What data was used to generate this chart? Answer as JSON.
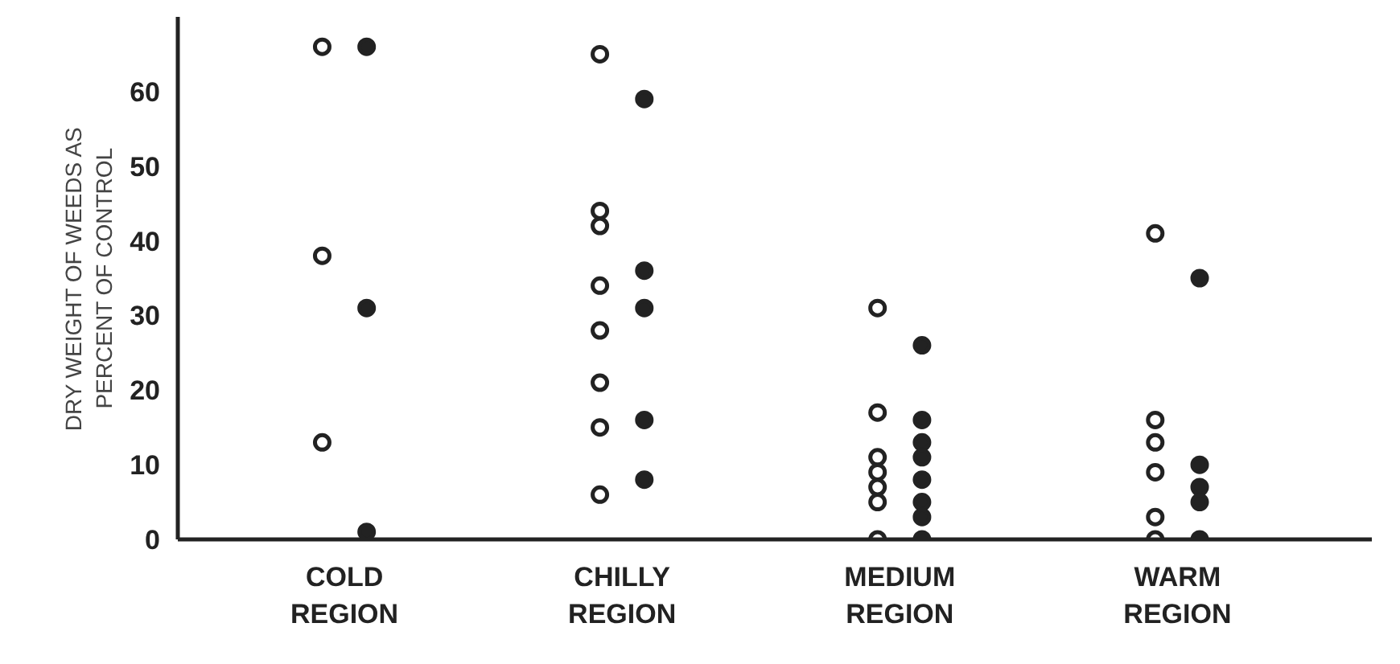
{
  "chart_data": {
    "type": "scatter",
    "ylabel": "DRY WEIGHT OF WEEDS AS\nPERCENT OF CONTROL",
    "categories": [
      "COLD\nREGION",
      "CHILLY\nREGION",
      "MEDIUM\nREGION",
      "WARM\nREGION"
    ],
    "ylim": [
      0,
      70
    ],
    "yticks": [
      0,
      10,
      20,
      30,
      40,
      50,
      60
    ],
    "grid": false,
    "series": [
      {
        "color": "#222222",
        "marker": "circle_open",
        "x": [
          "COLD\nREGION",
          "COLD\nREGION",
          "COLD\nREGION",
          "CHILLY\nREGION",
          "CHILLY\nREGION",
          "CHILLY\nREGION",
          "CHILLY\nREGION",
          "CHILLY\nREGION",
          "CHILLY\nREGION",
          "CHILLY\nREGION",
          "CHILLY\nREGION",
          "MEDIUM\nREGION",
          "MEDIUM\nREGION",
          "MEDIUM\nREGION",
          "MEDIUM\nREGION",
          "MEDIUM\nREGION",
          "MEDIUM\nREGION",
          "MEDIUM\nREGION",
          "WARM\nREGION",
          "WARM\nREGION",
          "WARM\nREGION",
          "WARM\nREGION",
          "WARM\nREGION",
          "WARM\nREGION"
        ],
        "values": [
          66,
          38,
          13,
          65,
          44,
          42,
          34,
          28,
          21,
          15,
          6,
          31,
          17,
          11,
          9,
          7,
          5,
          0,
          41,
          16,
          13,
          9,
          3,
          0
        ]
      },
      {
        "color": "#222222",
        "marker": "circle",
        "x": [
          "COLD\nREGION",
          "COLD\nREGION",
          "COLD\nREGION",
          "CHILLY\nREGION",
          "CHILLY\nREGION",
          "CHILLY\nREGION",
          "CHILLY\nREGION",
          "CHILLY\nREGION",
          "MEDIUM\nREGION",
          "MEDIUM\nREGION",
          "MEDIUM\nREGION",
          "MEDIUM\nREGION",
          "MEDIUM\nREGION",
          "MEDIUM\nREGION",
          "MEDIUM\nREGION",
          "MEDIUM\nREGION",
          "WARM\nREGION",
          "WARM\nREGION",
          "WARM\nREGION",
          "WARM\nREGION",
          "WARM\nREGION"
        ],
        "values": [
          66,
          31,
          1,
          59,
          36,
          31,
          16,
          8,
          26,
          16,
          13,
          11,
          8,
          5,
          3,
          0,
          35,
          10,
          7,
          5,
          0
        ]
      }
    ]
  }
}
